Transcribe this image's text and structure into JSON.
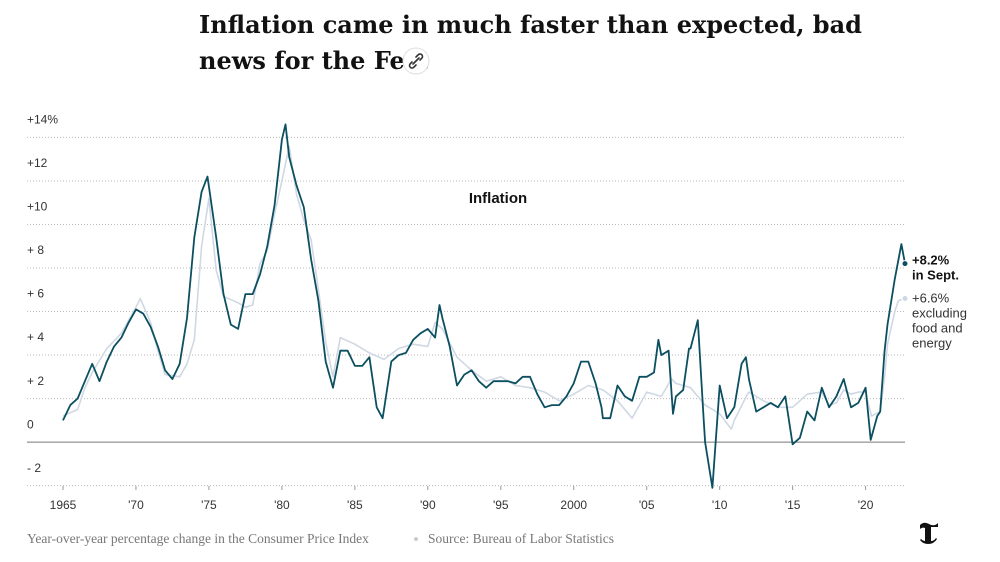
{
  "chart_data": {
    "type": "line",
    "title": "Inflation came in much faster than expected, bad news for the Fed.",
    "chart_label": "Inflation",
    "caption": "Year-over-year percentage change in the Consumer Price Index",
    "source": "Source: Bureau of Labor Statistics",
    "xlim": [
      1965,
      2022.7
    ],
    "xticks": [
      1965,
      {
        "value": 1970,
        "label": "'70"
      },
      {
        "value": 1975,
        "label": "'75"
      },
      {
        "value": 1980,
        "label": "'80"
      },
      {
        "value": 1985,
        "label": "'85"
      },
      {
        "value": 1990,
        "label": "'90"
      },
      {
        "value": 1995,
        "label": "'95"
      },
      2000,
      {
        "value": 2005,
        "label": "'05"
      },
      {
        "value": 2010,
        "label": "'10"
      },
      {
        "value": 2015,
        "label": "'15"
      },
      {
        "value": 2020,
        "label": "'20"
      }
    ],
    "ylim": [
      -2.2,
      14.8
    ],
    "yticks": [
      {
        "value": -2,
        "label": "- 2"
      },
      0,
      {
        "value": 2,
        "label": "+ 2"
      },
      {
        "value": 4,
        "label": "+ 4"
      },
      {
        "value": 6,
        "label": "+ 6"
      },
      {
        "value": 8,
        "label": "+ 8"
      },
      {
        "value": 10,
        "label": "+10"
      },
      {
        "value": 12,
        "label": "+12"
      },
      {
        "value": 14,
        "label": "+14%"
      }
    ],
    "grid": true,
    "series": [
      {
        "color": "#cfd8e3",
        "end_label": "+6.6%",
        "end_note": [
          "excluding",
          "food and",
          "energy"
        ],
        "x": [
          1965,
          1966,
          1966.5,
          1967,
          1968,
          1969,
          1970,
          1970.3,
          1971,
          1971.5,
          1972,
          1973,
          1973.5,
          1974,
          1974.5,
          1975,
          1975.5,
          1976,
          1977,
          1977.5,
          1978,
          1978.5,
          1979,
          1979.5,
          1980,
          1980.5,
          1981,
          1981.5,
          1982,
          1982.5,
          1983,
          1983.5,
          1984,
          1985,
          1986,
          1987,
          1988,
          1989,
          1990,
          1990.5,
          1991,
          1992,
          1993,
          1994,
          1995,
          1996,
          1997,
          1998,
          1999,
          2000,
          2001,
          2002,
          2003,
          2004,
          2005,
          2006,
          2006.7,
          2007,
          2008,
          2009,
          2010,
          2010.8,
          2011,
          2011.9,
          2012,
          2013,
          2014,
          2015,
          2016,
          2017,
          2017.5,
          2018,
          2018.5,
          2019,
          2019.5,
          2020,
          2020.4,
          2021,
          2021.3,
          2021.5,
          2022,
          2022.25,
          2022.7
        ],
        "values": [
          1.2,
          1.5,
          2.5,
          3.2,
          4.3,
          5.0,
          6.2,
          6.6,
          5.5,
          4.2,
          3.1,
          3.0,
          3.6,
          4.7,
          9.0,
          11.2,
          7.9,
          6.7,
          6.4,
          6.2,
          6.3,
          8.2,
          8.8,
          10.5,
          12.0,
          13.6,
          11.4,
          10.2,
          9.3,
          7.0,
          4.6,
          3.0,
          4.8,
          4.5,
          4.1,
          3.8,
          4.3,
          4.5,
          4.4,
          5.5,
          5.2,
          3.9,
          3.3,
          2.8,
          3.0,
          2.6,
          2.5,
          2.3,
          1.9,
          2.2,
          2.6,
          2.4,
          1.9,
          1.1,
          2.3,
          2.1,
          2.9,
          2.7,
          2.5,
          1.7,
          1.3,
          0.6,
          1.0,
          2.2,
          2.3,
          1.9,
          1.6,
          1.6,
          2.2,
          2.3,
          1.7,
          1.8,
          2.4,
          2.2,
          2.3,
          2.3,
          1.2,
          1.4,
          3.0,
          4.5,
          6.0,
          6.5,
          6.6
        ]
      },
      {
        "color": "#0b4f61",
        "end_label": "+8.2%",
        "end_note": [
          "in Sept."
        ],
        "x": [
          1965,
          1965.5,
          1966,
          1966.5,
          1967,
          1967.5,
          1968,
          1968.5,
          1969,
          1969.5,
          1970,
          1970.5,
          1971,
          1971.5,
          1972,
          1972.5,
          1973,
          1973.5,
          1974,
          1974.5,
          1974.9,
          1975.5,
          1976,
          1976.5,
          1977,
          1977.5,
          1978,
          1978.5,
          1979,
          1979.5,
          1980,
          1980.25,
          1980.5,
          1981,
          1981.5,
          1982,
          1982.5,
          1983,
          1983.5,
          1984,
          1984.5,
          1985,
          1985.5,
          1986,
          1986.5,
          1986.9,
          1987,
          1987.5,
          1988,
          1988.5,
          1989,
          1989.5,
          1990,
          1990.5,
          1990.8,
          1991,
          1991.5,
          1992,
          1992.5,
          1993,
          1993.5,
          1994,
          1994.5,
          1995,
          1995.5,
          1996,
          1996.5,
          1997,
          1997.5,
          1998,
          1998.5,
          1999,
          1999.5,
          2000,
          2000.5,
          2001,
          2001.5,
          2001.9,
          2002,
          2002.5,
          2003,
          2003.5,
          2004,
          2004.5,
          2005,
          2005.5,
          2005.8,
          2006,
          2006.5,
          2006.8,
          2007,
          2007.5,
          2007.9,
          2008,
          2008.5,
          2008.9,
          2009,
          2009.5,
          2010,
          2010.5,
          2011,
          2011.5,
          2011.8,
          2012,
          2012.5,
          2013,
          2013.5,
          2014,
          2014.5,
          2015,
          2015.5,
          2016,
          2016.5,
          2017,
          2017.5,
          2018,
          2018.5,
          2019,
          2019.5,
          2020,
          2020.35,
          2020.8,
          2021,
          2021.3,
          2021.5,
          2022,
          2022.45,
          2022.7
        ],
        "values": [
          1.0,
          1.7,
          2.0,
          2.8,
          3.6,
          2.8,
          3.7,
          4.4,
          4.8,
          5.5,
          6.1,
          5.9,
          5.3,
          4.4,
          3.3,
          2.9,
          3.6,
          5.7,
          9.4,
          11.5,
          12.2,
          9.4,
          6.8,
          5.4,
          5.2,
          6.8,
          6.8,
          7.7,
          9.0,
          10.9,
          13.9,
          14.6,
          13.1,
          11.8,
          10.8,
          8.4,
          6.5,
          3.7,
          2.5,
          4.2,
          4.2,
          3.5,
          3.5,
          3.9,
          1.6,
          1.1,
          1.5,
          3.7,
          4.0,
          4.1,
          4.7,
          5.0,
          5.2,
          4.8,
          6.3,
          5.7,
          4.4,
          2.6,
          3.1,
          3.3,
          2.8,
          2.5,
          2.8,
          2.8,
          2.8,
          2.7,
          3.0,
          3.0,
          2.2,
          1.6,
          1.7,
          1.7,
          2.1,
          2.7,
          3.7,
          3.7,
          2.7,
          1.6,
          1.1,
          1.1,
          2.6,
          2.1,
          1.9,
          3.0,
          3.0,
          3.2,
          4.7,
          4.0,
          4.2,
          1.3,
          2.1,
          2.4,
          4.3,
          4.3,
          5.6,
          1.1,
          0.0,
          -2.1,
          2.6,
          1.1,
          1.6,
          3.6,
          3.9,
          2.9,
          1.4,
          1.6,
          1.8,
          1.6,
          2.1,
          -0.1,
          0.2,
          1.4,
          1.0,
          2.5,
          1.6,
          2.1,
          2.9,
          1.6,
          1.8,
          2.5,
          0.1,
          1.2,
          1.4,
          4.2,
          5.4,
          7.5,
          9.1,
          8.2
        ]
      }
    ]
  }
}
